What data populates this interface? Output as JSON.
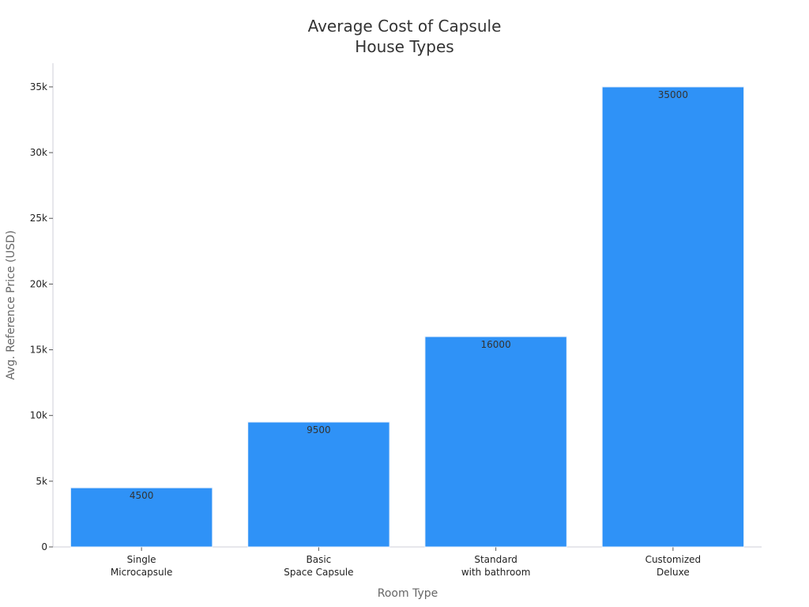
{
  "chart_data": {
    "type": "bar",
    "title": [
      "Average Cost of Capsule",
      "House Types"
    ],
    "xlabel": "Room Type",
    "ylabel": "Avg. Reference Price (USD)",
    "categories": [
      [
        "Single",
        "Microcapsule"
      ],
      [
        "Basic",
        "Space Capsule"
      ],
      [
        "Standard",
        "with bathroom"
      ],
      [
        "Customized",
        "Deluxe"
      ]
    ],
    "values": [
      4500,
      9500,
      16000,
      35000
    ],
    "data_labels": [
      "4500",
      "9500",
      "16000",
      "35000"
    ],
    "ylim": [
      0,
      36800
    ],
    "yticks": [
      0,
      5000,
      10000,
      15000,
      20000,
      25000,
      30000,
      35000
    ],
    "ytick_labels": [
      "0",
      "5k",
      "10k",
      "15k",
      "20k",
      "25k",
      "30k",
      "35k"
    ],
    "grid": false,
    "colors": {
      "bar": "#2f92f7",
      "bar_edge": "#e8f1fb",
      "axis": "#cfcfd8"
    }
  }
}
